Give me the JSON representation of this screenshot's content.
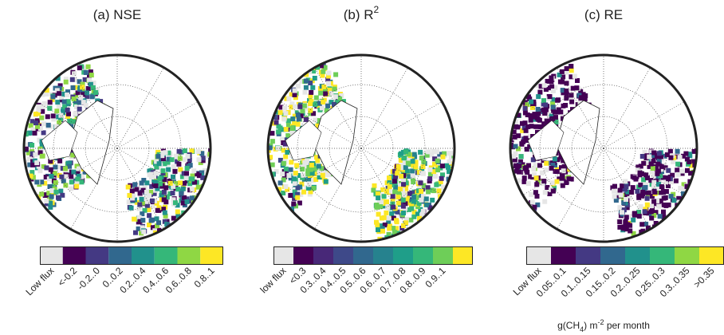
{
  "panels": [
    {
      "title": "(a) NSE",
      "colors": [
        "#e6e6e6",
        "#440154",
        "#443983",
        "#31688e",
        "#21918c",
        "#35b779",
        "#8fd744",
        "#fde725"
      ],
      "labels": [
        "Low flux",
        "<-0.2",
        "-0.2..0",
        "0..0.2",
        "0.2..0.4",
        "0.4..0.6",
        "0.6..0.8",
        "0.8..1"
      ]
    },
    {
      "title": "(b) R",
      "title_sup": "2",
      "colors": [
        "#e6e6e6",
        "#440154",
        "#482878",
        "#3e4989",
        "#31688e",
        "#26828e",
        "#1f9e89",
        "#35b779",
        "#6ece58",
        "#fde725"
      ],
      "labels": [
        "low flux",
        "<0.3",
        "0.3..0.4",
        "0.4..0.5",
        "0.5..0.6",
        "0.6..0.7",
        "0.7..0.8",
        "0.8..0.9",
        "0.9..1",
        ""
      ]
    },
    {
      "title": "(c) RE",
      "colors": [
        "#e6e6e6",
        "#440154",
        "#443983",
        "#31688e",
        "#21918c",
        "#35b779",
        "#8fd744",
        "#fde725"
      ],
      "labels": [
        "Low flux",
        "0.05..0.1",
        "0.1..0.15",
        "0.15..0.2",
        "0.2..0.25",
        "0.25..0.3",
        "0.3..0.35",
        ">0.35"
      ]
    }
  ],
  "unit_label": [
    "g(CH",
    "4",
    ") m",
    "-2",
    " per month"
  ]
}
